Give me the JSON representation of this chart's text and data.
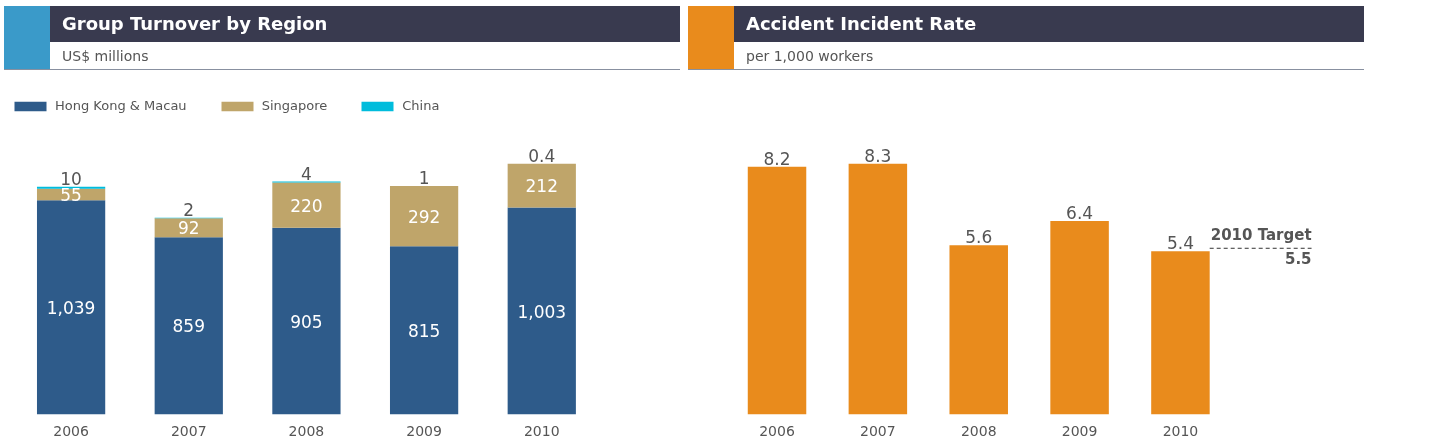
{
  "chart_data": [
    {
      "type": "bar",
      "title": "Group Turnover by Region",
      "subtitle": "US$ millions",
      "stacked": true,
      "data_labels": true,
      "legend": "top",
      "grid": false,
      "categories": [
        "2006",
        "2007",
        "2008",
        "2009",
        "2010"
      ],
      "series": [
        {
          "name": "Hong Kong & Macau",
          "color": "#2e5b8a",
          "values": [
            1039,
            859,
            905,
            815,
            1003
          ],
          "value_labels": [
            "1,039",
            "859",
            "905",
            "815",
            "1,003"
          ]
        },
        {
          "name": "Singapore",
          "color": "#bfa56a",
          "values": [
            55,
            92,
            220,
            292,
            212
          ]
        },
        {
          "name": "China",
          "color": "#00bcdc",
          "values": [
            10,
            2,
            4,
            1,
            0.4
          ]
        }
      ]
    },
    {
      "type": "bar",
      "title": "Accident Incident Rate",
      "subtitle": "per 1,000 workers",
      "data_labels": true,
      "grid": false,
      "categories": [
        "2006",
        "2007",
        "2008",
        "2009",
        "2010"
      ],
      "series": [
        {
          "color": "#e98b1c",
          "values": [
            8.2,
            8.3,
            5.6,
            6.4,
            5.4
          ]
        }
      ],
      "ref_lines": [
        {
          "axis": "y",
          "value": 5.5,
          "label": "2010 Target",
          "line_style": "dashed"
        }
      ],
      "annotations": [
        {
          "text": "5.5",
          "y": 5.5
        }
      ]
    }
  ]
}
